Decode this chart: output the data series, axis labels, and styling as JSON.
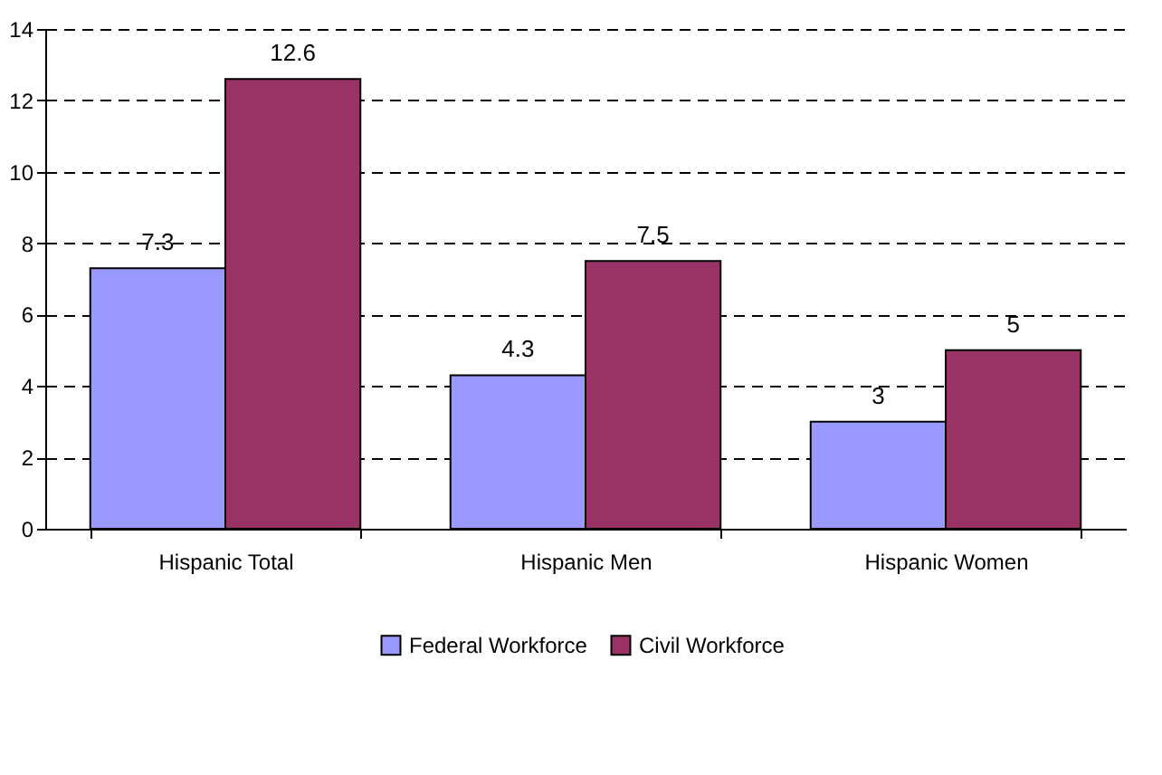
{
  "chart_data": {
    "type": "bar",
    "categories": [
      "Hispanic Total",
      "Hispanic Men",
      "Hispanic Women"
    ],
    "series": [
      {
        "name": "Federal Workforce",
        "color": "#9999ff",
        "values": [
          7.3,
          4.3,
          3
        ]
      },
      {
        "name": "Civil Workforce",
        "color": "#993366",
        "values": [
          12.6,
          7.5,
          5
        ]
      }
    ],
    "ylim": [
      0,
      14
    ],
    "yticks": [
      0,
      2,
      4,
      6,
      8,
      10,
      12,
      14
    ],
    "grid": "y",
    "legend": "bottom",
    "data_labels": true
  }
}
